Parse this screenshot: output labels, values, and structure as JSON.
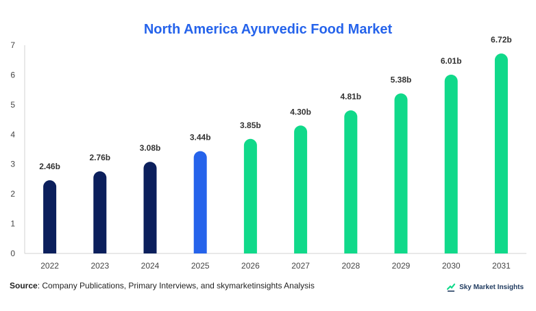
{
  "chart_data": {
    "type": "bar",
    "title": "North America Ayurvedic Food Market",
    "xlabel": "",
    "ylabel": "",
    "categories": [
      "2022",
      "2023",
      "2024",
      "2025",
      "2026",
      "2027",
      "2028",
      "2029",
      "2030",
      "2031"
    ],
    "values": [
      2.46,
      2.76,
      3.08,
      3.44,
      3.85,
      4.3,
      4.81,
      5.38,
      6.01,
      6.72
    ],
    "data_labels": [
      "2.46b",
      "2.76b",
      "3.08b",
      "3.44b",
      "3.85b",
      "4.30b",
      "4.81b",
      "5.38b",
      "6.01b",
      "6.72b"
    ],
    "ylim": [
      0,
      7
    ],
    "yticks": [
      "0",
      "1",
      "2",
      "3",
      "4",
      "5",
      "6",
      "7"
    ],
    "grid": false,
    "legend": "none",
    "bar_colors": [
      "#0b1f5c",
      "#0b1f5c",
      "#0b1f5c",
      "#2563eb",
      "#10d98a",
      "#10d98a",
      "#10d98a",
      "#10d98a",
      "#10d98a",
      "#10d98a"
    ]
  },
  "source": {
    "label": "Source",
    "text": ": Company Publications, Primary Interviews, and skymarketinsights Analysis"
  },
  "logo": {
    "text": "Sky Market Insights",
    "icon": "sky-market-insights-logo-icon"
  },
  "colors": {
    "title": "#2563eb",
    "historical": "#0b1f5c",
    "current": "#2563eb",
    "forecast": "#10d98a"
  }
}
